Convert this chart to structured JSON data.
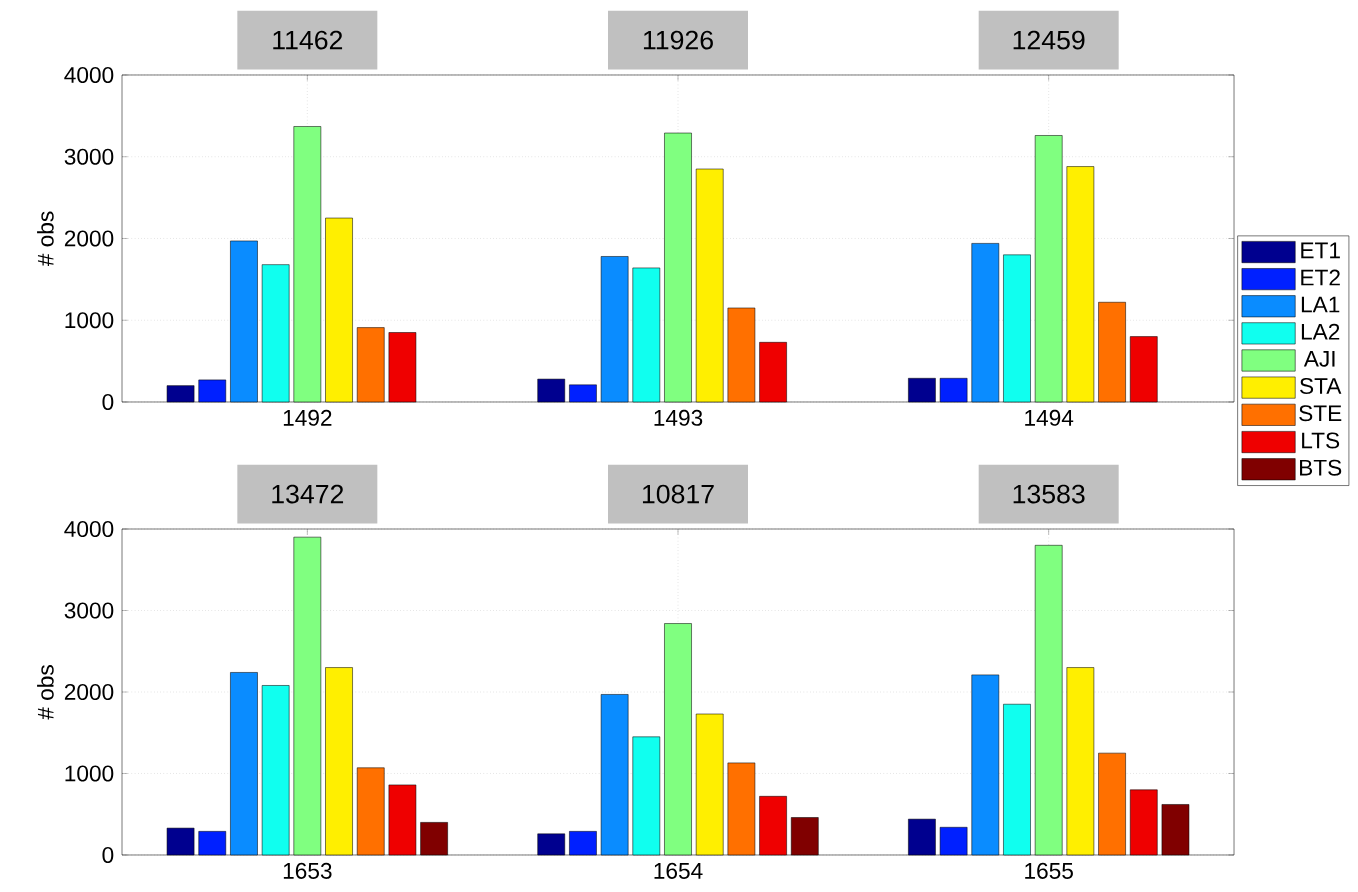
{
  "chart_data": [
    {
      "type": "bar",
      "ylabel": "# obs",
      "categories": [
        "1492",
        "1493",
        "1494"
      ],
      "ylim": [
        0,
        4000
      ],
      "yticks": [
        0,
        1000,
        2000,
        3000,
        4000
      ],
      "grid": true,
      "annotations": [
        "11462",
        "11926",
        "12459"
      ],
      "series": [
        {
          "color": "#00008f",
          "values": [
            200,
            280,
            290
          ]
        },
        {
          "color": "#0020ff",
          "values": [
            270,
            210,
            290
          ]
        },
        {
          "color": "#0a8cff",
          "values": [
            1970,
            1780,
            1940
          ]
        },
        {
          "color": "#10ffef",
          "values": [
            1680,
            1640,
            1800
          ]
        },
        {
          "color": "#80ff80",
          "values": [
            3370,
            3290,
            3260
          ]
        },
        {
          "color": "#ffef00",
          "values": [
            2250,
            2850,
            2880
          ]
        },
        {
          "color": "#ff7000",
          "values": [
            910,
            1150,
            1220
          ]
        },
        {
          "color": "#ef0000",
          "values": [
            850,
            730,
            800
          ]
        },
        {
          "color": "#800000",
          "values": [
            null,
            null,
            null
          ]
        }
      ]
    },
    {
      "type": "bar",
      "ylabel": "# obs",
      "categories": [
        "1653",
        "1654",
        "1655"
      ],
      "ylim": [
        0,
        4000
      ],
      "yticks": [
        0,
        1000,
        2000,
        3000,
        4000
      ],
      "grid": true,
      "legend": "right",
      "annotations": [
        "13472",
        "10817",
        "13583"
      ],
      "series": [
        {
          "name": "ET1",
          "color": "#00008f",
          "values": [
            330,
            260,
            440
          ]
        },
        {
          "name": "ET2",
          "color": "#0020ff",
          "values": [
            290,
            290,
            340
          ]
        },
        {
          "name": "LA1",
          "color": "#0a8cff",
          "values": [
            2240,
            1970,
            2210
          ]
        },
        {
          "name": "LA2",
          "color": "#10ffef",
          "values": [
            2080,
            1450,
            1850
          ]
        },
        {
          "name": "AJI",
          "color": "#80ff80",
          "values": [
            3900,
            2840,
            3800
          ]
        },
        {
          "name": "STA",
          "color": "#ffef00",
          "values": [
            2300,
            1730,
            2300
          ]
        },
        {
          "name": "STE",
          "color": "#ff7000",
          "values": [
            1070,
            1130,
            1250
          ]
        },
        {
          "name": "LTS",
          "color": "#ef0000",
          "values": [
            860,
            720,
            800
          ]
        },
        {
          "name": "BTS",
          "color": "#800000",
          "values": [
            400,
            460,
            620
          ]
        }
      ]
    }
  ]
}
